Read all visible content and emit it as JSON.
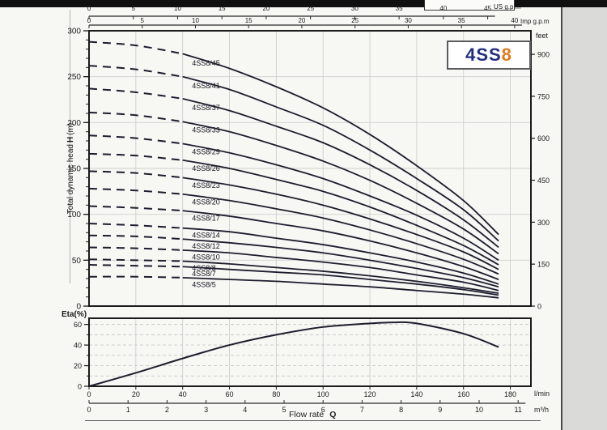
{
  "logo": {
    "prefix": "4SS",
    "suffix": "8",
    "prefix_color": "#232e7e",
    "suffix_color": "#e07b1c"
  },
  "labels": {
    "us_gpm": "US g.p.m",
    "imp_gpm": "Imp g.p.m",
    "feet": "feet",
    "eta": "Eta(%)",
    "lmin": "l/min",
    "m3h": "m³/h",
    "flow_rate": "Flow rate",
    "flow_rate_symbol": "Q",
    "head_label_pre": "Total dynamic head",
    "head_label_symbol": "H",
    "head_label_post": "(m)"
  },
  "chart_data": [
    {
      "id": "head-curves",
      "type": "line",
      "ylabel": "Total dynamic head H (m)",
      "x_unit": "l/min",
      "xlim": [
        0,
        188.8
      ],
      "ylim": [
        0,
        300
      ],
      "y_ticks": [
        0,
        50,
        100,
        150,
        200,
        250,
        300
      ],
      "y_minor_step": 10,
      "right_axis": {
        "unit": "feet",
        "ticks": [
          0,
          150,
          300,
          450,
          600,
          750,
          900
        ],
        "m_per_unit": 0.3048
      },
      "top_axis_us": {
        "unit": "US g.p.m",
        "ticks": [
          0,
          5,
          10,
          15,
          20,
          25,
          30,
          35,
          40,
          45
        ],
        "lmin_per_unit": 3.785
      },
      "top_axis_imp": {
        "unit": "Imp g.p.m",
        "ticks": [
          0,
          5,
          10,
          15,
          20,
          25,
          30,
          35,
          40
        ],
        "lmin_per_unit": 4.546
      },
      "grid_x_step": 20,
      "grid_y_step": 50,
      "dashed_below_x": 40,
      "label_at_x": 44,
      "x": [
        0,
        20,
        40,
        60,
        80,
        100,
        120,
        140,
        160,
        175
      ],
      "series": [
        {
          "label": "4SS8/45",
          "values": [
            288,
            284,
            275,
            259,
            239,
            216,
            187,
            153,
            115,
            78
          ]
        },
        {
          "label": "4SS8/41",
          "values": [
            262,
            258,
            250,
            236,
            217,
            197,
            170,
            139,
            105,
            71
          ]
        },
        {
          "label": "4SS8/37",
          "values": [
            237,
            233,
            226,
            213,
            196,
            178,
            154,
            126,
            94,
            64
          ]
        },
        {
          "label": "4SS8/33",
          "values": [
            211,
            208,
            201,
            190,
            175,
            158,
            137,
            112,
            84,
            57
          ]
        },
        {
          "label": "4SS8/29",
          "values": [
            186,
            183,
            177,
            167,
            154,
            139,
            120,
            99,
            74,
            50
          ]
        },
        {
          "label": "4SS8/26",
          "values": [
            166,
            164,
            159,
            150,
            138,
            125,
            108,
            88,
            66,
            45
          ]
        },
        {
          "label": "4SS8/23",
          "values": [
            147,
            145,
            140,
            132,
            122,
            110,
            95,
            78,
            59,
            40
          ]
        },
        {
          "label": "4SS8/20",
          "values": [
            128,
            126,
            122,
            115,
            106,
            96,
            83,
            68,
            51,
            35
          ]
        },
        {
          "label": "4SS8/17",
          "values": [
            109,
            107,
            104,
            98,
            90,
            82,
            71,
            58,
            43,
            29
          ]
        },
        {
          "label": "4SS8/14",
          "values": [
            90,
            88,
            85,
            81,
            74,
            67,
            58,
            48,
            36,
            24
          ]
        },
        {
          "label": "4SS8/12",
          "values": [
            77,
            76,
            73,
            69,
            64,
            58,
            50,
            41,
            31,
            21
          ]
        },
        {
          "label": "4SS8/10",
          "values": [
            64,
            63,
            61,
            58,
            53,
            48,
            42,
            34,
            26,
            17
          ]
        },
        {
          "label": "4SS8/8",
          "values": [
            51,
            50,
            49,
            46,
            42,
            38,
            33,
            27,
            20,
            14
          ]
        },
        {
          "label": "4SS8/7",
          "values": [
            45,
            44,
            43,
            40,
            37,
            34,
            29,
            24,
            18,
            12
          ]
        },
        {
          "label": "4SS8/5",
          "values": [
            32,
            32,
            31,
            29,
            27,
            24,
            21,
            17,
            13,
            9
          ]
        }
      ]
    },
    {
      "id": "efficiency",
      "type": "line",
      "ylabel": "Eta(%)",
      "xlabel": "Flow rate Q",
      "xlim": [
        0,
        188.8
      ],
      "ylim": [
        0,
        66
      ],
      "y_ticks": [
        0,
        20,
        40,
        60
      ],
      "y_minor_step": 10,
      "x_ticks_lmin": [
        0,
        20,
        40,
        60,
        80,
        100,
        120,
        140,
        160,
        180
      ],
      "x_ticks_m3h": [
        0,
        1,
        2,
        3,
        4,
        5,
        6,
        7,
        8,
        9,
        10,
        11
      ],
      "lmin_per_m3h": 16.667,
      "x": [
        0,
        20,
        40,
        60,
        80,
        100,
        120,
        130,
        140,
        160,
        175
      ],
      "values": [
        0,
        13,
        27,
        40,
        50,
        57.5,
        61,
        62,
        61,
        51,
        38
      ]
    }
  ]
}
